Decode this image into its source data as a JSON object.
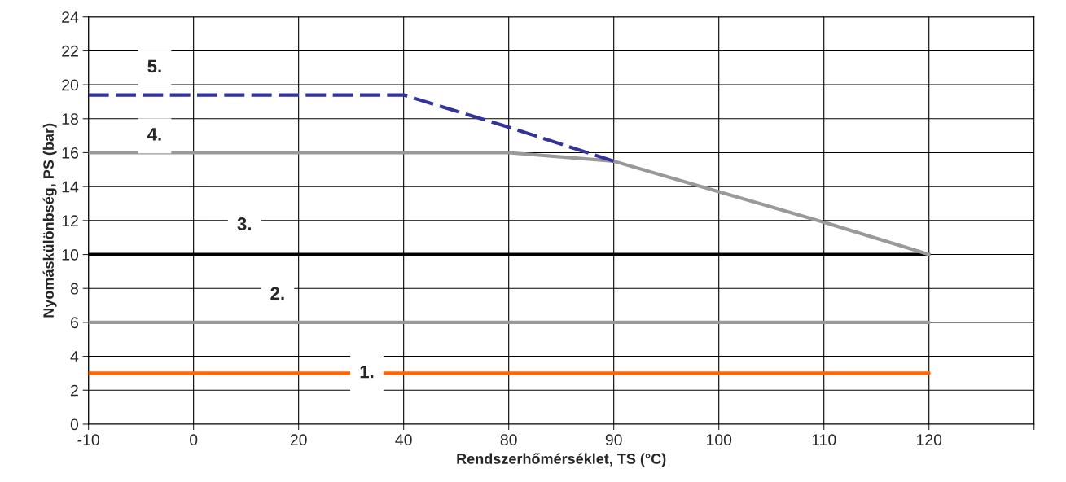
{
  "chart_data": {
    "type": "line",
    "xlabel": "Rendszerhőmérséklet, TS (°C)",
    "ylabel": "Nyomáskülönbség, PS (bar)",
    "categories": [
      "-10",
      "0",
      "20",
      "40",
      "80",
      "90",
      "100",
      "110",
      "120",
      null
    ],
    "series": [
      {
        "color": "#ff6600",
        "values": [
          3,
          3,
          3,
          3,
          3,
          3,
          3,
          3,
          3,
          null
        ]
      },
      {
        "color": "#999999",
        "values": [
          6,
          6,
          6,
          6,
          6,
          6,
          6,
          6,
          6,
          null
        ]
      },
      {
        "color": "#000000",
        "values": [
          10,
          10,
          10,
          10,
          10,
          10,
          10,
          10,
          10,
          null
        ]
      },
      {
        "color": "#999999",
        "values": [
          16,
          16,
          16,
          16,
          16,
          15.5,
          13.7,
          11.9,
          10,
          null
        ]
      },
      {
        "color": "#333399",
        "line_style": "dashed",
        "values": [
          19.4,
          19.4,
          19.4,
          19.4,
          17.5,
          15.5,
          null,
          null,
          null,
          null
        ]
      }
    ],
    "ylim": [
      0,
      24
    ],
    "yticks": [
      0,
      2,
      4,
      6,
      8,
      10,
      12,
      14,
      16,
      18,
      20,
      22,
      24
    ],
    "grid": true,
    "annotations": [
      {
        "text": "1.",
        "x": "40",
        "y": 3
      },
      "2.",
      "3.",
      "4.",
      "5."
    ]
  }
}
